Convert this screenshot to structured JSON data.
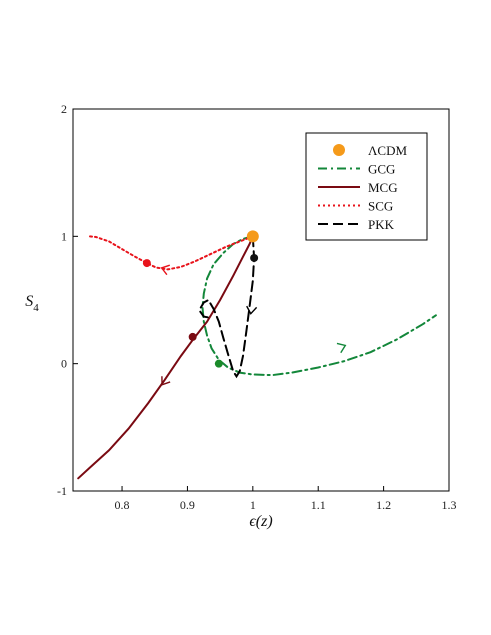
{
  "chart_data": {
    "type": "line",
    "xlabel": "ϵ(z)",
    "ylabel": "S",
    "ylabel_sub": "4",
    "xlim": [
      0.725,
      1.3
    ],
    "ylim": [
      -1,
      2
    ],
    "xticks": [
      "0.8",
      "0.9",
      "1",
      "1.1",
      "1.2",
      "1.3"
    ],
    "yticks": [
      "-1",
      "0",
      "1",
      "2"
    ],
    "legend_position": "top-right",
    "lambda_cdm_point": {
      "name": "ΛCDM",
      "x": 1.0,
      "y": 1.0,
      "color": "#f59a1a"
    },
    "series": [
      {
        "name": "GCG",
        "color": "#13873a",
        "style": "dashdot",
        "points": [
          [
            1.0,
            1.0
          ],
          [
            0.985,
            0.98
          ],
          [
            0.97,
            0.94
          ],
          [
            0.955,
            0.87
          ],
          [
            0.94,
            0.78
          ],
          [
            0.93,
            0.67
          ],
          [
            0.925,
            0.55
          ],
          [
            0.923,
            0.44
          ],
          [
            0.925,
            0.33
          ],
          [
            0.93,
            0.22
          ],
          [
            0.937,
            0.12
          ],
          [
            0.948,
            0.03
          ],
          [
            0.962,
            -0.03
          ],
          [
            0.98,
            -0.07
          ],
          [
            1.0,
            -0.085
          ],
          [
            1.03,
            -0.09
          ],
          [
            1.06,
            -0.07
          ],
          [
            1.1,
            -0.03
          ],
          [
            1.14,
            0.02
          ],
          [
            1.18,
            0.09
          ],
          [
            1.22,
            0.19
          ],
          [
            1.26,
            0.31
          ],
          [
            1.28,
            0.38
          ]
        ],
        "marker": {
          "x": 0.948,
          "y": 0.0,
          "color": "#1a8a2a"
        },
        "arrow": {
          "x": 1.14,
          "y": 0.14
        }
      },
      {
        "name": "MCG",
        "color": "#7a0a12",
        "style": "solid",
        "points": [
          [
            1.0,
            1.0
          ],
          [
            0.995,
            0.94
          ],
          [
            0.985,
            0.84
          ],
          [
            0.97,
            0.69
          ],
          [
            0.95,
            0.5
          ],
          [
            0.93,
            0.33
          ],
          [
            0.91,
            0.2
          ],
          [
            0.89,
            0.06
          ],
          [
            0.865,
            -0.13
          ],
          [
            0.84,
            -0.31
          ],
          [
            0.81,
            -0.51
          ],
          [
            0.78,
            -0.68
          ],
          [
            0.75,
            -0.82
          ],
          [
            0.733,
            -0.9
          ]
        ],
        "marker": {
          "x": 0.908,
          "y": 0.21,
          "color": "#7a0a12"
        },
        "arrow": {
          "x": 0.862,
          "y": -0.16
        }
      },
      {
        "name": "SCG",
        "color": "#e8131b",
        "style": "dotted",
        "points": [
          [
            1.0,
            1.0
          ],
          [
            0.985,
            0.97
          ],
          [
            0.96,
            0.92
          ],
          [
            0.935,
            0.86
          ],
          [
            0.91,
            0.8
          ],
          [
            0.89,
            0.76
          ],
          [
            0.87,
            0.74
          ],
          [
            0.852,
            0.755
          ],
          [
            0.838,
            0.79
          ],
          [
            0.82,
            0.84
          ],
          [
            0.8,
            0.9
          ],
          [
            0.78,
            0.96
          ],
          [
            0.76,
            0.995
          ],
          [
            0.75,
            1.0
          ]
        ],
        "marker": {
          "x": 0.838,
          "y": 0.79,
          "color": "#e8131b"
        },
        "arrow": {
          "x": 0.862,
          "y": 0.75
        }
      },
      {
        "name": "PKK",
        "color": "#000000",
        "style": "dashed",
        "points": [
          [
            1.0,
            1.0
          ],
          [
            1.002,
            0.83
          ],
          [
            1.0,
            0.65
          ],
          [
            0.995,
            0.45
          ],
          [
            0.99,
            0.25
          ],
          [
            0.985,
            0.06
          ],
          [
            0.98,
            -0.06
          ],
          [
            0.975,
            -0.1
          ],
          [
            0.97,
            -0.06
          ],
          [
            0.963,
            0.06
          ],
          [
            0.955,
            0.2
          ],
          [
            0.948,
            0.33
          ],
          [
            0.94,
            0.43
          ],
          [
            0.932,
            0.5
          ],
          [
            0.925,
            0.48
          ],
          [
            0.918,
            0.42
          ],
          [
            0.925,
            0.37
          ],
          [
            0.935,
            0.36
          ]
        ],
        "marker": {
          "x": 1.002,
          "y": 0.83,
          "color": "#111111"
        },
        "arrow": {
          "x": 0.997,
          "y": 0.4
        }
      }
    ]
  }
}
